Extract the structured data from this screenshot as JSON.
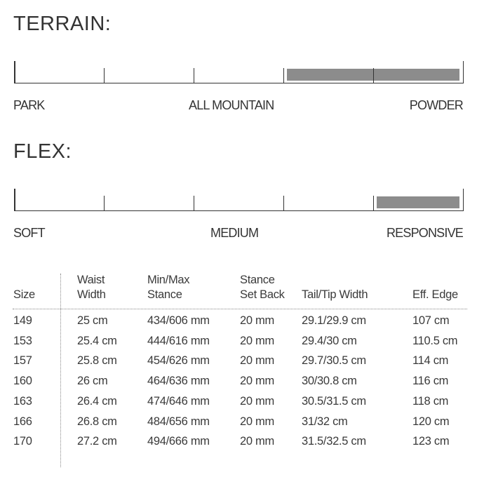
{
  "terrain": {
    "title": "TERRAIN:",
    "labels": {
      "left": "PARK",
      "middle": "ALL MOUNTAIN",
      "right": "POWDER"
    },
    "segments": 5,
    "fill_range_fraction": [
      0.6,
      1.0
    ],
    "fill_color": "#8c8c8c"
  },
  "flex": {
    "title": "FLEX:",
    "labels": {
      "left": "SOFT",
      "middle": "MEDIUM",
      "right": "RESPONSIVE"
    },
    "segments": 5,
    "fill_range_fraction": [
      0.8,
      1.0
    ],
    "fill_color": "#8c8c8c"
  },
  "table": {
    "headers": [
      [
        "",
        "Size"
      ],
      [
        "Waist",
        "Width"
      ],
      [
        "Min/Max",
        "Stance"
      ],
      [
        "Stance",
        "Set Back"
      ],
      [
        "",
        "Tail/Tip Width"
      ],
      [
        "",
        "Eff. Edge"
      ]
    ],
    "rows": [
      [
        "149",
        "25 cm",
        "434/606 mm",
        "20 mm",
        "29.1/29.9 cm",
        "107 cm"
      ],
      [
        "153",
        "25.4 cm",
        "444/616 mm",
        "20 mm",
        "29.4/30 cm",
        "110.5 cm"
      ],
      [
        "157",
        "25.8 cm",
        "454/626 mm",
        "20 mm",
        "29.7/30.5 cm",
        "114 cm"
      ],
      [
        "160",
        "26 cm",
        "464/636 mm",
        "20 mm",
        "30/30.8 cm",
        "116 cm"
      ],
      [
        "163",
        "26.4 cm",
        "474/646 mm",
        "20 mm",
        "30.5/31.5 cm",
        "118 cm"
      ],
      [
        "166",
        "26.8 cm",
        "484/656 mm",
        "20 mm",
        "31/32 cm",
        "120 cm"
      ],
      [
        "170",
        "27.2 cm",
        "494/666 mm",
        "20 mm",
        "31.5/32.5 cm",
        "123 cm"
      ]
    ]
  }
}
